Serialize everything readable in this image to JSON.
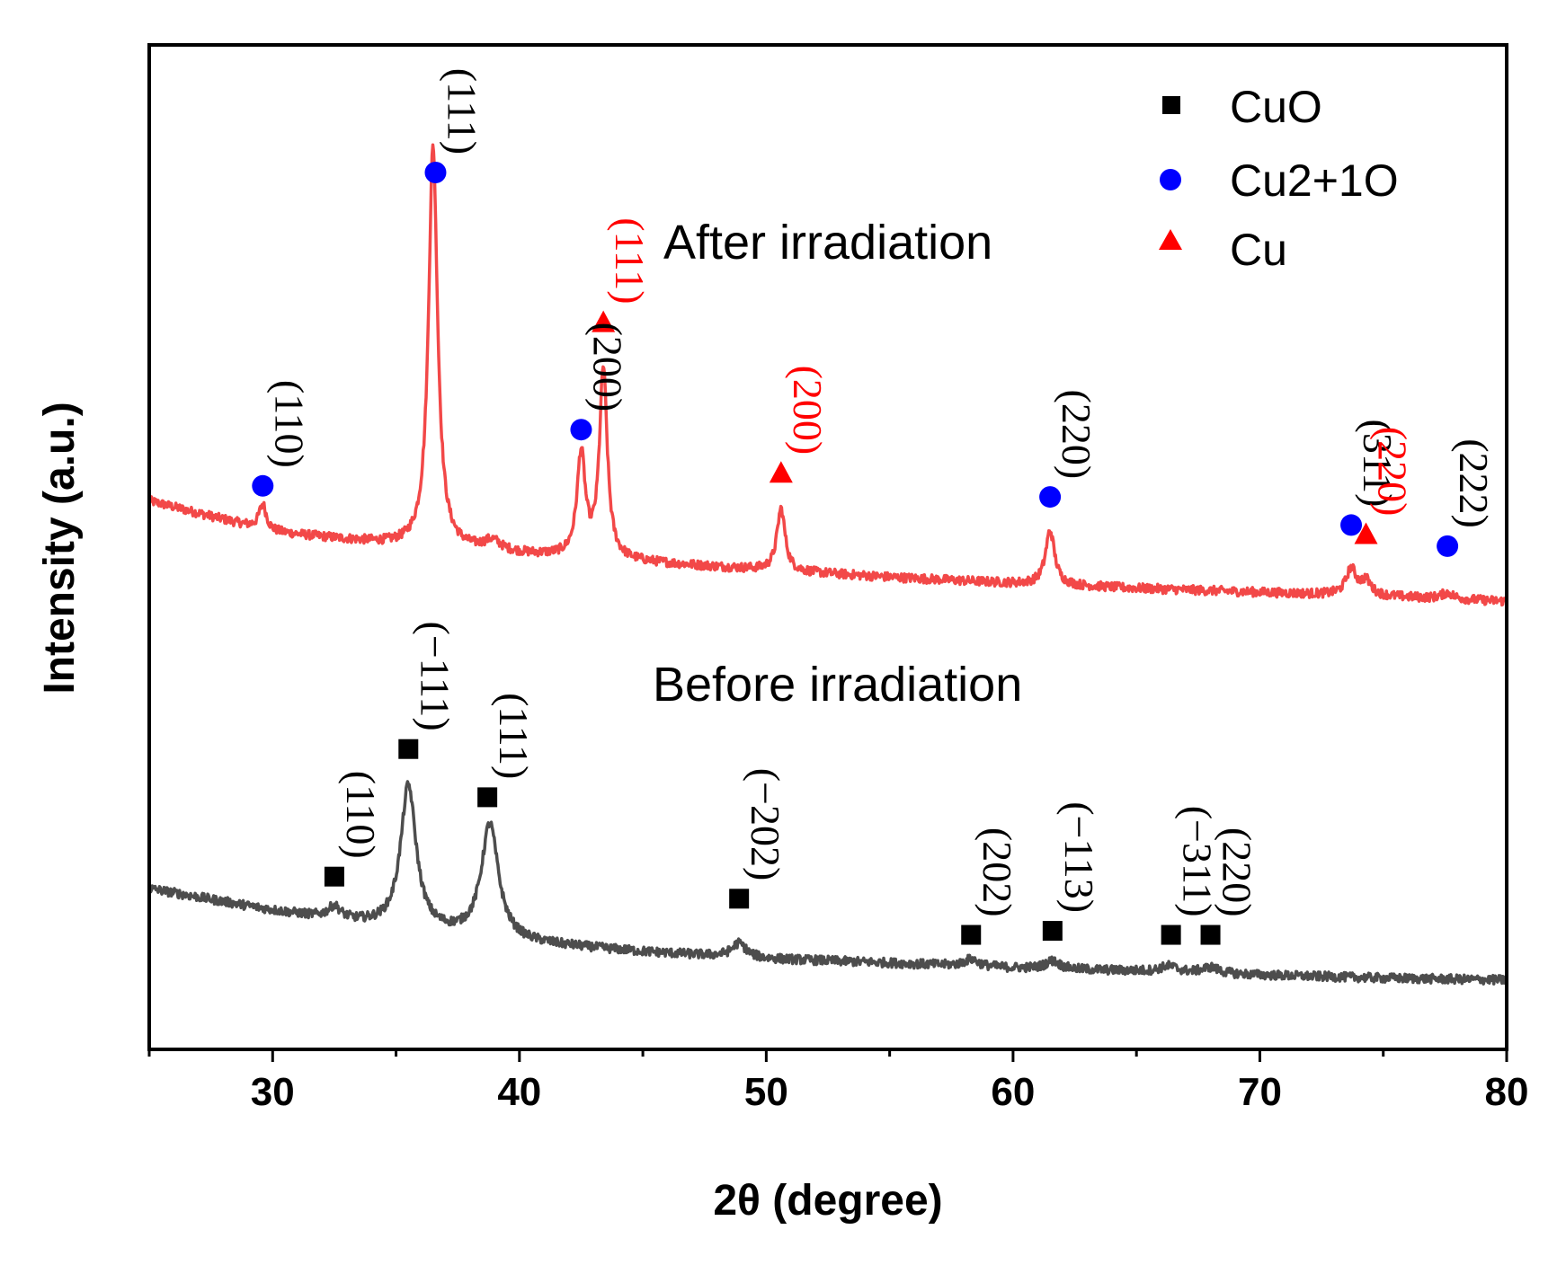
{
  "chart_data": {
    "type": "line",
    "xlabel": "2θ (degree)",
    "ylabel": "Intensity (a.u.)",
    "xlim": [
      25,
      80
    ],
    "ylim": [
      0,
      100
    ],
    "xticks": [
      30,
      40,
      50,
      60,
      70,
      80
    ],
    "legend": {
      "placement": "top-right",
      "entries": [
        {
          "label": "CuO",
          "marker": "square",
          "color": "#000000"
        },
        {
          "label": "Cu2+1O",
          "marker": "circle",
          "color": "#0000ff"
        },
        {
          "label": "Cu",
          "marker": "triangle",
          "color": "#ff0000"
        }
      ]
    },
    "colors": {
      "after": "#f24848",
      "before": "#4d4d4d",
      "cu_label": "#ff0000",
      "label": "#000000"
    },
    "series": [
      {
        "name": "After irradiation",
        "baseline": [
          [
            25,
            54.6
          ],
          [
            30,
            51.5
          ],
          [
            35,
            50.2
          ],
          [
            40,
            49.3
          ],
          [
            45,
            48.5
          ],
          [
            50,
            47.7
          ],
          [
            55,
            47.0
          ],
          [
            60,
            46.4
          ],
          [
            65,
            45.9
          ],
          [
            70,
            45.5
          ],
          [
            75,
            45.1
          ],
          [
            80,
            44.6
          ]
        ],
        "peaks": [
          {
            "x": 29.6,
            "height": 2.5,
            "width": 0.18
          },
          {
            "x": 36.5,
            "height": 40.0,
            "width": 0.22
          },
          {
            "x": 38.9,
            "height": 1.0,
            "width": 0.4
          },
          {
            "x": 42.5,
            "height": 10.2,
            "width": 0.2
          },
          {
            "x": 43.4,
            "height": 18.8,
            "width": 0.19
          },
          {
            "x": 50.6,
            "height": 6.2,
            "width": 0.2
          },
          {
            "x": 61.5,
            "height": 5.4,
            "width": 0.22
          },
          {
            "x": 73.7,
            "height": 2.6,
            "width": 0.25
          },
          {
            "x": 74.3,
            "height": 1.4,
            "width": 0.25
          },
          {
            "x": 77.6,
            "height": 0.6,
            "width": 0.3
          }
        ],
        "markers": [
          {
            "x": 29.6,
            "y": 56.1,
            "shape": "circle",
            "label": "(110)",
            "label_color": "#000000"
          },
          {
            "x": 36.6,
            "y": 87.3,
            "shape": "circle",
            "label": "(111)",
            "label_color": "#000000"
          },
          {
            "x": 42.5,
            "y": 61.7,
            "shape": "circle",
            "label": "(200)",
            "label_color": "#000000"
          },
          {
            "x": 43.4,
            "y": 72.4,
            "shape": "triangle",
            "label": "(111)",
            "label_color": "#ff0000"
          },
          {
            "x": 50.6,
            "y": 57.4,
            "shape": "triangle",
            "label": "(200)",
            "label_color": "#ff0000"
          },
          {
            "x": 61.5,
            "y": 55.0,
            "shape": "circle",
            "label": "(220)",
            "label_color": "#000000"
          },
          {
            "x": 73.7,
            "y": 52.2,
            "shape": "circle",
            "label": "(311)",
            "label_color": "#000000"
          },
          {
            "x": 74.3,
            "y": 51.3,
            "shape": "triangle",
            "label": "(220)",
            "label_color": "#ff0000"
          },
          {
            "x": 77.6,
            "y": 50.1,
            "shape": "circle",
            "label": "(222)",
            "label_color": "#000000"
          }
        ]
      },
      {
        "name": "Before irradiation",
        "baseline": [
          [
            25,
            16.0
          ],
          [
            30,
            13.8
          ],
          [
            35,
            12.0
          ],
          [
            40,
            10.6
          ],
          [
            45,
            9.7
          ],
          [
            50,
            9.0
          ],
          [
            55,
            8.6
          ],
          [
            60,
            8.1
          ],
          [
            65,
            7.8
          ],
          [
            70,
            7.4
          ],
          [
            75,
            7.1
          ],
          [
            80,
            6.9
          ]
        ],
        "peaks": [
          {
            "x": 32.5,
            "height": 1.2,
            "width": 0.3
          },
          {
            "x": 35.5,
            "height": 14.3,
            "width": 0.38
          },
          {
            "x": 38.8,
            "height": 11.4,
            "width": 0.42
          },
          {
            "x": 48.9,
            "height": 1.4,
            "width": 0.35
          },
          {
            "x": 58.3,
            "height": 0.7,
            "width": 0.35
          },
          {
            "x": 61.6,
            "height": 0.8,
            "width": 0.35
          },
          {
            "x": 66.3,
            "height": 0.6,
            "width": 0.4
          },
          {
            "x": 68.0,
            "height": 0.6,
            "width": 0.4
          }
        ],
        "markers": [
          {
            "x": 32.5,
            "y": 17.2,
            "shape": "square",
            "label": "(110)",
            "label_color": "#000000"
          },
          {
            "x": 35.5,
            "y": 29.9,
            "shape": "square",
            "label": "(−111)",
            "label_color": "#000000"
          },
          {
            "x": 38.7,
            "y": 25.1,
            "shape": "square",
            "label": "(111)",
            "label_color": "#000000"
          },
          {
            "x": 48.9,
            "y": 15.0,
            "shape": "square",
            "label": "(−202)",
            "label_color": "#000000"
          },
          {
            "x": 58.3,
            "y": 11.4,
            "shape": "square",
            "label": "(202)",
            "label_color": "#000000"
          },
          {
            "x": 61.6,
            "y": 11.8,
            "shape": "square",
            "label": "(−113)",
            "label_color": "#000000"
          },
          {
            "x": 66.4,
            "y": 11.4,
            "shape": "square",
            "label": "(−311)",
            "label_color": "#000000"
          },
          {
            "x": 68.0,
            "y": 11.4,
            "shape": "square",
            "label": "(220)",
            "label_color": "#000000"
          }
        ]
      }
    ]
  }
}
